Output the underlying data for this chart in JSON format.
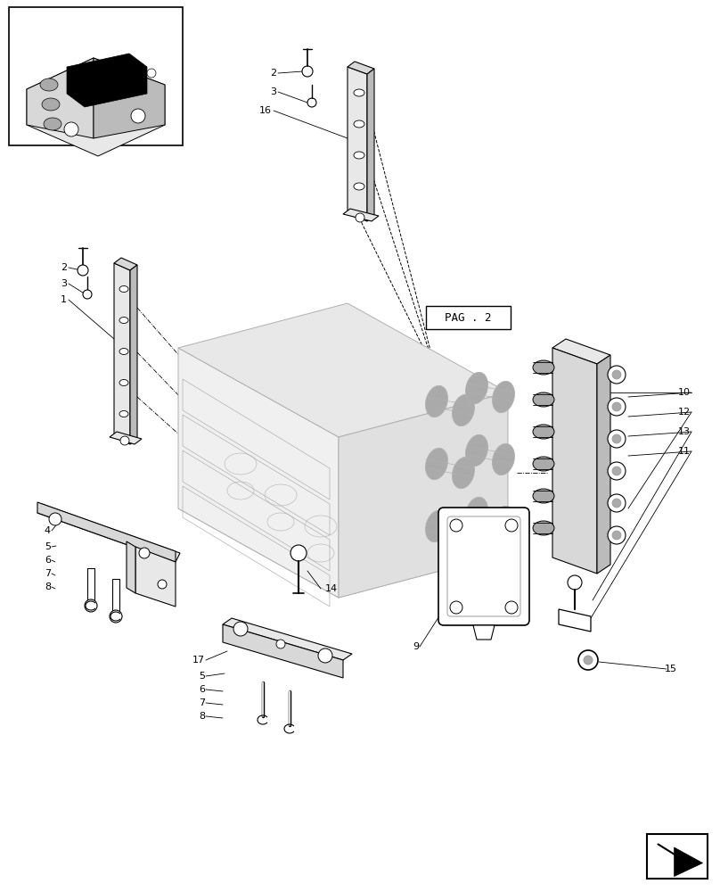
{
  "bg_color": "#ffffff",
  "lc": "#000000",
  "gray1": "#cccccc",
  "gray2": "#bbbbbb",
  "gray3": "#aaaaaa",
  "gray4": "#999999",
  "gray5": "#e8e8e8",
  "gray6": "#d8d8d8",
  "fig_width": 8.08,
  "fig_height": 10.0,
  "pag2_label": "PAG . 2"
}
